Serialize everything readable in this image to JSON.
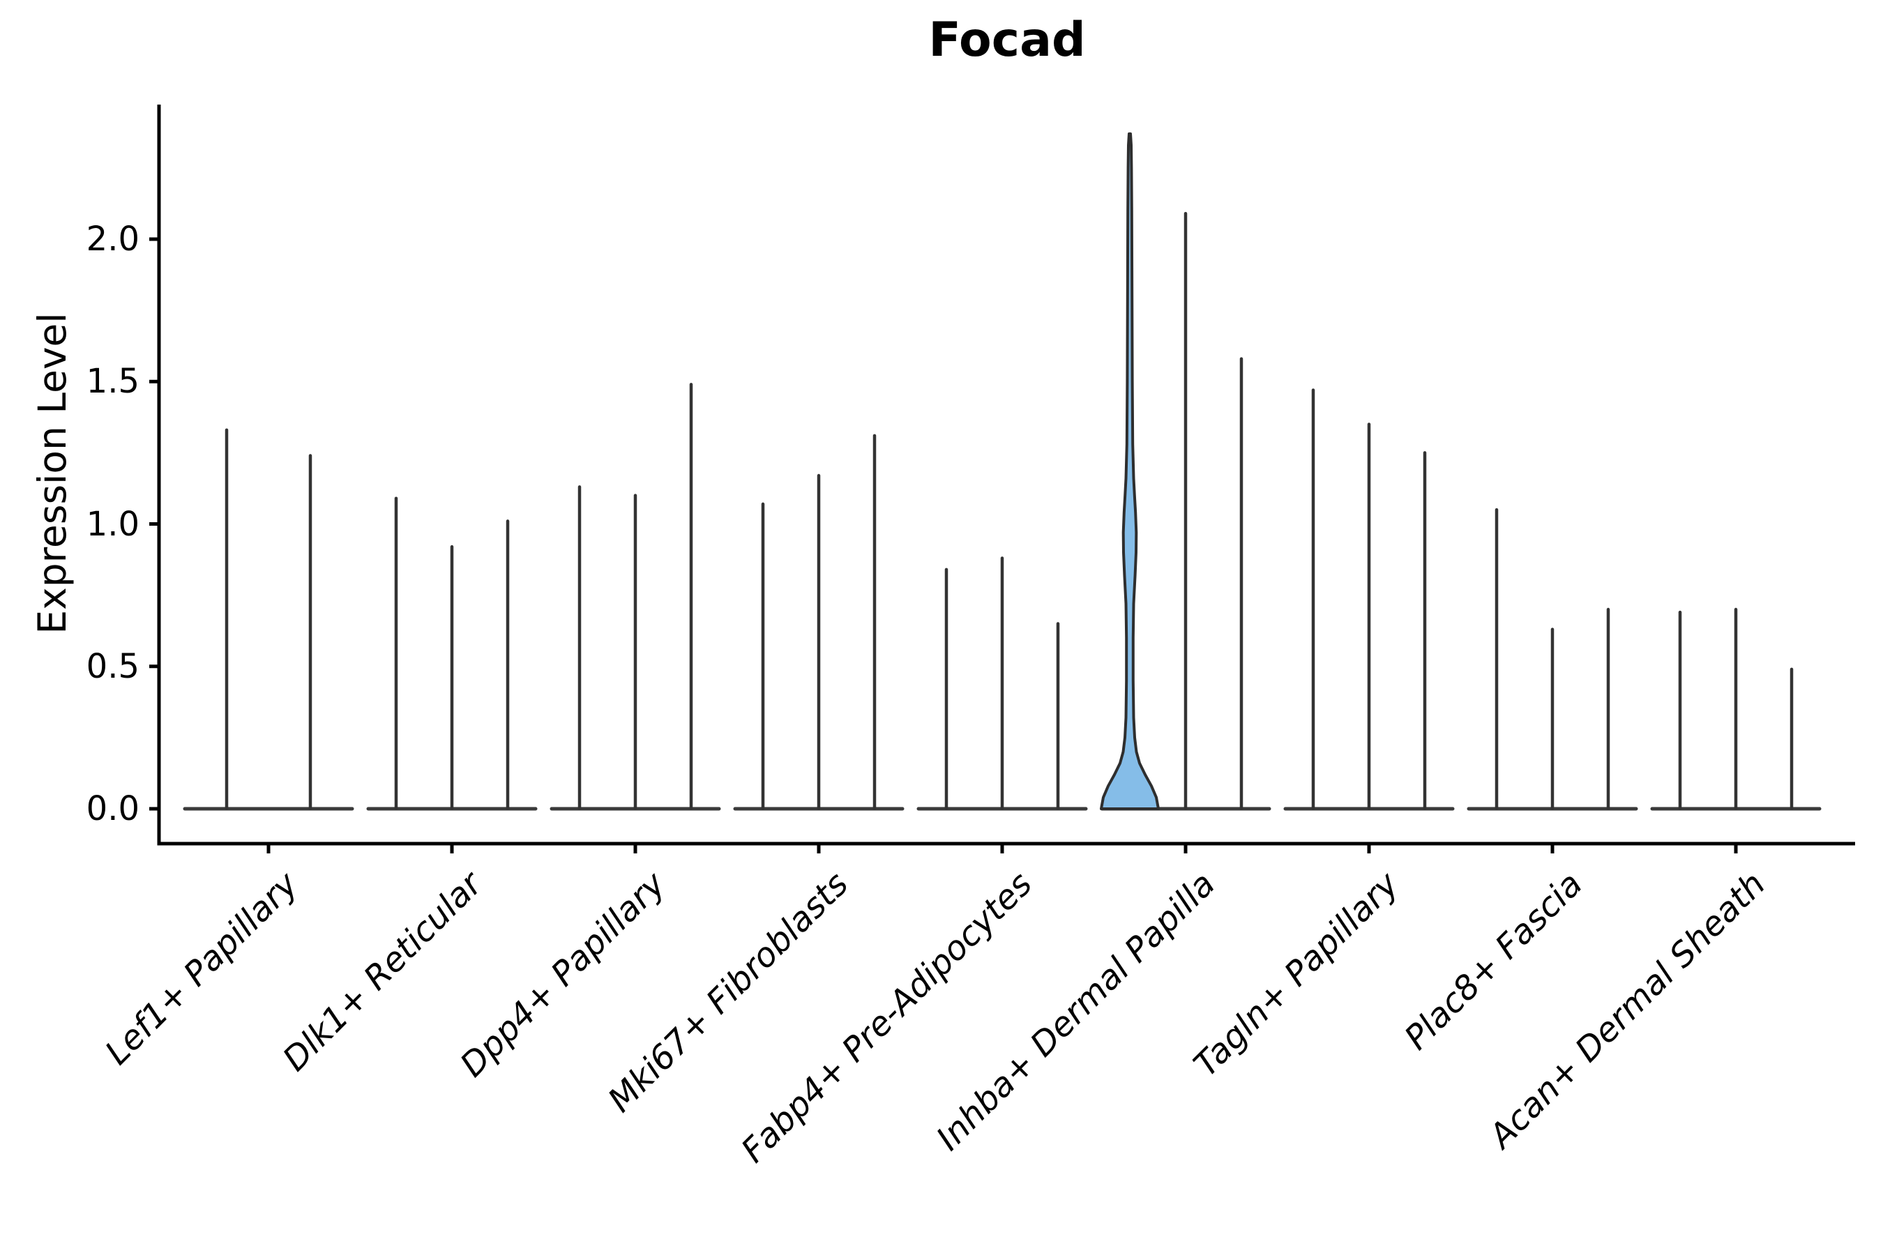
{
  "chart_data": {
    "type": "violin",
    "title": "Focad",
    "ylabel": "Expression Level",
    "xlabel": "",
    "ytick_labels": [
      "0.0",
      "0.5",
      "1.0",
      "1.5",
      "2.0"
    ],
    "ytick_values": [
      0.0,
      0.5,
      1.0,
      1.5,
      2.0
    ],
    "ylim": [
      0.0,
      2.45
    ],
    "grid": false,
    "legend": null,
    "categories": [
      "Lef1+ Papillary",
      "Dlk1+ Reticular",
      "Dpp4+ Papillary",
      "Mki67+ Fibroblasts",
      "Fabp4+ Pre-Adipocytes",
      "Inhba+ Dermal Papilla",
      "Tagln+ Papillary",
      "Plac8+ Fascia",
      "Acan+ Dermal Sheath"
    ],
    "groups": [
      {
        "category": "Lef1+ Papillary",
        "violin_max": [
          1.33,
          1.24
        ]
      },
      {
        "category": "Dlk1+ Reticular",
        "violin_max": [
          1.09,
          0.92,
          1.01
        ]
      },
      {
        "category": "Dpp4+ Papillary",
        "violin_max": [
          1.13,
          1.1,
          1.49
        ]
      },
      {
        "category": "Mki67+ Fibroblasts",
        "violin_max": [
          1.07,
          1.17,
          1.31
        ]
      },
      {
        "category": "Fabp4+ Pre-Adipocytes",
        "violin_max": [
          0.84,
          0.88,
          0.65
        ]
      },
      {
        "category": "Inhba+ Dermal Papilla",
        "violin_max": [
          2.37,
          2.09,
          1.58
        ],
        "highlight_index": 0
      },
      {
        "category": "Tagln+ Papillary",
        "violin_max": [
          1.47,
          1.35,
          1.25
        ]
      },
      {
        "category": "Plac8+ Fascia",
        "violin_max": [
          1.05,
          0.63,
          0.7
        ]
      },
      {
        "category": "Acan+ Dermal Sheath",
        "violin_max": [
          0.69,
          0.7,
          0.49
        ]
      }
    ],
    "highlight_violin": {
      "category": "Inhba+ Dermal Papilla",
      "violin_index": 0,
      "max": 2.37,
      "bulge_range": [
        0.79,
        1.15
      ],
      "bulge_peak": 0.97,
      "base_bulge_range": [
        0.0,
        0.25
      ],
      "profile_value_halfwidth": [
        [
          0.0,
          41
        ],
        [
          0.04,
          38
        ],
        [
          0.08,
          31
        ],
        [
          0.12,
          22
        ],
        [
          0.16,
          14
        ],
        [
          0.2,
          9.5
        ],
        [
          0.25,
          7.0
        ],
        [
          0.32,
          5.5
        ],
        [
          0.45,
          4.8
        ],
        [
          0.6,
          4.8
        ],
        [
          0.72,
          5.5
        ],
        [
          0.82,
          7.6
        ],
        [
          0.9,
          9.0
        ],
        [
          0.97,
          9.3
        ],
        [
          1.04,
          8.2
        ],
        [
          1.1,
          6.8
        ],
        [
          1.16,
          5.5
        ],
        [
          1.28,
          4.2
        ],
        [
          1.5,
          3.6
        ],
        [
          1.8,
          3.2
        ],
        [
          2.1,
          2.8
        ],
        [
          2.25,
          2.4
        ],
        [
          2.33,
          2.0
        ],
        [
          2.37,
          1.0
        ]
      ]
    },
    "colors": {
      "spike": "#333333",
      "baseline": "#3a3a3a",
      "axis": "#000000",
      "highlight_fill": "#85BDE8",
      "highlight_stroke": "#2e2e2e",
      "background": "#ffffff"
    }
  }
}
